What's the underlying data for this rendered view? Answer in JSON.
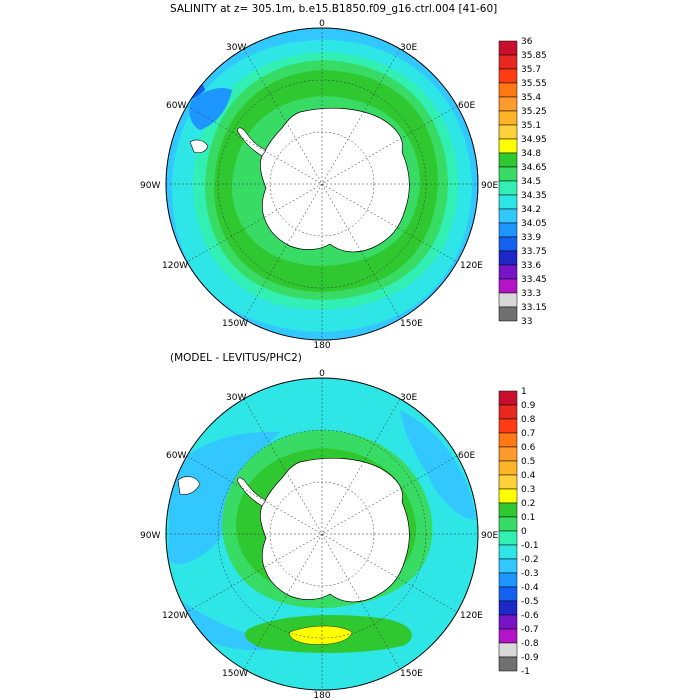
{
  "panel1": {
    "title": "SALINITY at z= 305.1m, b.e15.B1850.f09_g16.ctrl.004 [41-60]",
    "lon_labels": {
      "top": "0",
      "ne": "30E",
      "e60": "60E",
      "e90": "90E",
      "e120": "120E",
      "e150": "150E",
      "bottom": "180",
      "w150": "150W",
      "w120": "120W",
      "w90": "90W",
      "w60": "60W",
      "w30": "30W"
    },
    "colorbar": {
      "labels": [
        "36",
        "35.85",
        "35.7",
        "35.55",
        "35.4",
        "35.25",
        "35.1",
        "34.95",
        "34.8",
        "34.65",
        "34.5",
        "34.35",
        "34.2",
        "34.05",
        "33.9",
        "33.75",
        "33.6",
        "33.45",
        "33.3",
        "33.15",
        "33"
      ],
      "colors": [
        "#c8102e",
        "#e8281e",
        "#ff3c14",
        "#ff7814",
        "#ff9a2e",
        "#ffb428",
        "#ffd23c",
        "#ffff00",
        "#30c830",
        "#38dc64",
        "#32f0b4",
        "#2ee6e6",
        "#32c8ff",
        "#1e96ff",
        "#1460f0",
        "#1e28c8",
        "#7814c8",
        "#b414c8",
        "#d8d8d8",
        "#707070"
      ]
    }
  },
  "panel2": {
    "title": "(MODEL - LEVITUS/PHC2)",
    "lon_labels": {
      "top": "0",
      "ne": "30E",
      "e60": "60E",
      "e90": "90E",
      "e120": "120E",
      "e150": "150E",
      "bottom": "180",
      "w150": "150W",
      "w120": "120W",
      "w90": "90W",
      "w60": "60W",
      "w30": "30W"
    },
    "colorbar": {
      "labels": [
        "1",
        "0.9",
        "0.8",
        "0.7",
        "0.6",
        "0.5",
        "0.4",
        "0.3",
        "0.2",
        "0.1",
        "0",
        "-0.1",
        "-0.2",
        "-0.3",
        "-0.4",
        "-0.5",
        "-0.6",
        "-0.7",
        "-0.8",
        "-0.9",
        "-1"
      ],
      "colors": [
        "#c8102e",
        "#e8281e",
        "#ff3c14",
        "#ff7814",
        "#ff9a2e",
        "#ffb428",
        "#ffd23c",
        "#ffff00",
        "#30c830",
        "#38dc64",
        "#32f0b4",
        "#2ee6e6",
        "#32c8ff",
        "#1e96ff",
        "#1460f0",
        "#1e28c8",
        "#7814c8",
        "#b414c8",
        "#d8d8d8",
        "#707070"
      ]
    }
  }
}
